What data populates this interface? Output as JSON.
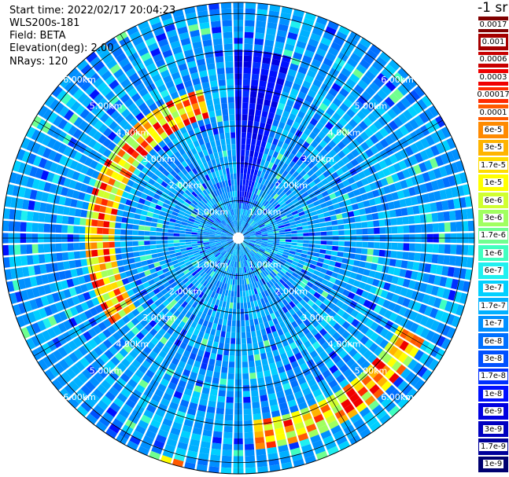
{
  "info": {
    "start_time": "Start time: 2022/02/17 20:04:23",
    "instrument": "WLS200s-181",
    "field": "Field: BETA",
    "elevation": "Elevation(deg): 2.00",
    "nrays": "NRays: 120"
  },
  "colorbar": {
    "unit": "-1 sr",
    "labels": [
      "0.0017",
      "0.001",
      "0.0006",
      "0.0003",
      "0.00017",
      "0.0001",
      "6e-5",
      "3e-5",
      "1.7e-5",
      "1e-5",
      "6e-6",
      "3e-6",
      "1.7e-6",
      "1e-6",
      "6e-7",
      "3e-7",
      "1.7e-7",
      "1e-7",
      "6e-8",
      "3e-8",
      "1.7e-8",
      "1e-8",
      "6e-9",
      "3e-9",
      "1.7e-9",
      "1e-9"
    ],
    "colors": [
      "#800000",
      "#a50000",
      "#c80000",
      "#f00000",
      "#ff2a00",
      "#ff5a00",
      "#ff8a00",
      "#ffb400",
      "#ffdc00",
      "#ffff00",
      "#d0ff30",
      "#a0ff60",
      "#70ff90",
      "#40ffc0",
      "#20f0f0",
      "#00d0ff",
      "#00b0ff",
      "#0090ff",
      "#0070ff",
      "#0050ff",
      "#0030ff",
      "#0010ff",
      "#0000e0",
      "#0000c0",
      "#00009a",
      "#000070"
    ]
  },
  "chart_data": {
    "type": "heatmap",
    "projection": "polar PPI",
    "field": "BETA",
    "nrays": 120,
    "rings_km": [
      1,
      2,
      3,
      4,
      5,
      6
    ],
    "ring_labels": [
      "1.00km",
      "2.00km",
      "3.00km",
      "4.00km",
      "5.00km",
      "6.00km"
    ],
    "range_km": [
      0,
      6.3
    ],
    "spokes_deg": [
      0,
      30,
      60,
      90,
      120,
      150,
      180,
      210,
      240,
      270,
      300,
      330
    ],
    "background_level": "1e-8 to 1e-7",
    "features": [
      {
        "name": "aerosol arc west",
        "azimuth_deg": [
          235,
          345
        ],
        "range_km": [
          3.3,
          4.0
        ],
        "level": "1e-6 to 1e-4"
      },
      {
        "name": "aerosol arc south-east",
        "azimuth_deg": [
          118,
          175
        ],
        "range_km": [
          4.9,
          5.6
        ],
        "level": "1e-6 to 1e-4"
      },
      {
        "name": "clutter south",
        "azimuth_deg": [
          193,
          200
        ],
        "range_km": [
          6.1,
          6.3
        ],
        "level": "1e-6 to 6e-5"
      },
      {
        "name": "low returns north",
        "azimuth_deg": [
          0,
          15
        ],
        "range_km": [
          1.0,
          5.0
        ],
        "level": "1e-9 to 6e-9"
      }
    ]
  }
}
